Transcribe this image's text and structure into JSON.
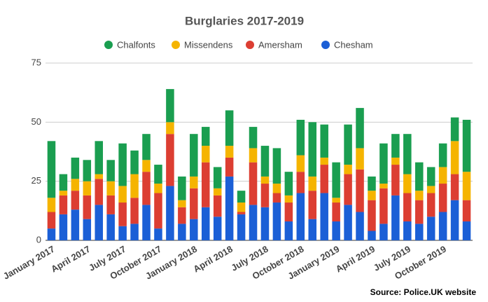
{
  "chart_data": {
    "type": "stacked_bar",
    "title": "Burglaries 2017-2019",
    "categories": [
      "January 2017",
      null,
      null,
      "April 2017",
      null,
      null,
      "July 2017",
      null,
      null,
      "October 2017",
      null,
      null,
      "January 2018",
      null,
      null,
      "April 2018",
      null,
      null,
      "July 2018",
      null,
      null,
      "October 2018",
      null,
      null,
      "January 2019",
      null,
      null,
      "April 2019",
      null,
      null,
      "July 2019",
      null,
      null,
      "October 2019",
      null,
      null
    ],
    "series": [
      {
        "name": "Chalfonts",
        "color": "#1a9e50",
        "values": [
          24,
          7,
          9,
          9,
          14,
          9,
          18,
          10,
          11,
          8,
          14,
          10,
          18,
          8,
          9,
          15,
          5,
          9,
          13,
          15,
          10,
          15,
          23,
          14,
          15,
          17,
          17,
          6,
          17,
          10,
          17,
          12,
          8,
          10,
          10,
          22
        ]
      },
      {
        "name": "Missendens",
        "color": "#f5b400",
        "values": [
          6,
          2,
          5,
          6,
          2,
          6,
          7,
          10,
          5,
          4,
          5,
          3,
          5,
          7,
          3,
          5,
          4,
          6,
          3,
          4,
          3,
          7,
          6,
          3,
          2,
          4,
          9,
          4,
          2,
          3,
          8,
          4,
          3,
          7,
          14,
          12
        ]
      },
      {
        "name": "Amersham",
        "color": "#dc3e32",
        "values": [
          7,
          8,
          8,
          10,
          11,
          8,
          10,
          11,
          14,
          15,
          22,
          7,
          13,
          19,
          9,
          8,
          1,
          18,
          10,
          4,
          8,
          9,
          12,
          12,
          8,
          13,
          18,
          13,
          15,
          13,
          12,
          10,
          10,
          12,
          11,
          9
        ]
      },
      {
        "name": "Chesham",
        "color": "#1b5fd6",
        "values": [
          5,
          11,
          13,
          9,
          15,
          11,
          6,
          7,
          15,
          5,
          23,
          7,
          9,
          14,
          10,
          27,
          11,
          15,
          14,
          16,
          8,
          20,
          9,
          20,
          8,
          15,
          12,
          4,
          7,
          19,
          8,
          7,
          10,
          12,
          17,
          8
        ]
      }
    ],
    "ylim": [
      0,
      75
    ],
    "yticks": [
      0,
      25,
      50,
      75
    ],
    "grid": true,
    "legend": "top",
    "source": "Source: Police.UK website"
  }
}
